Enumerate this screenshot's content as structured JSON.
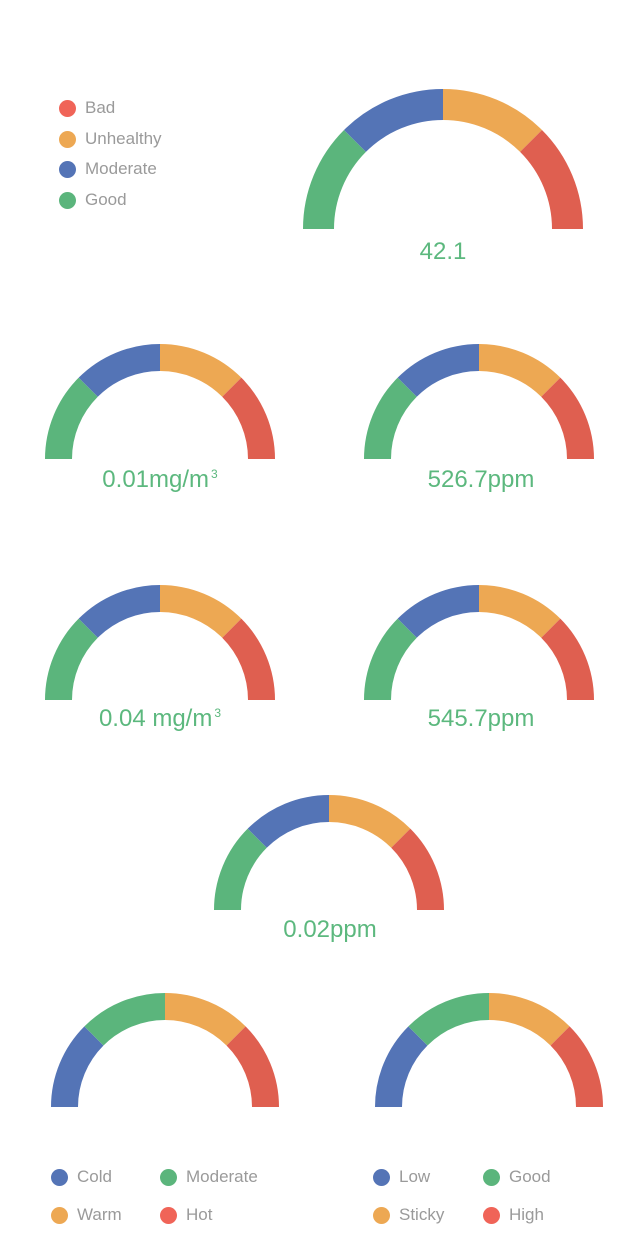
{
  "colors": {
    "good": "#5bb57c",
    "moderate": "#5474b6",
    "unhealthy": "#eda853",
    "bad": "#df5f50",
    "value_text": "#5cb87e",
    "legend_text": "#9a9a9a"
  },
  "legends": {
    "air_quality": [
      {
        "label": "Bad",
        "color": "#f06458"
      },
      {
        "label": "Unhealthy",
        "color": "#eda853"
      },
      {
        "label": "Moderate",
        "color": "#5474b6"
      },
      {
        "label": "Good",
        "color": "#5bb57c"
      }
    ],
    "temperature": [
      {
        "label": "Cold",
        "color": "#5474b6"
      },
      {
        "label": "Moderate",
        "color": "#5bb57c"
      },
      {
        "label": "Warm",
        "color": "#eda853"
      },
      {
        "label": "Hot",
        "color": "#f06458"
      }
    ],
    "humidity": [
      {
        "label": "Low",
        "color": "#5474b6"
      },
      {
        "label": "Good",
        "color": "#5bb57c"
      },
      {
        "label": "Sticky",
        "color": "#eda853"
      },
      {
        "label": "High",
        "color": "#f06458"
      }
    ]
  },
  "chart_data": [
    {
      "type": "gauge",
      "value": "42.1",
      "segments": [
        "Good",
        "Moderate",
        "Unhealthy",
        "Bad"
      ],
      "segment_colors": [
        "#5bb57c",
        "#5474b6",
        "#eda853",
        "#df5f50"
      ]
    },
    {
      "type": "gauge",
      "value": "0.01mg/m",
      "unit_superscript": "3",
      "segments": [
        "Good",
        "Moderate",
        "Unhealthy",
        "Bad"
      ],
      "segment_colors": [
        "#5bb57c",
        "#5474b6",
        "#eda853",
        "#df5f50"
      ]
    },
    {
      "type": "gauge",
      "value": "526.7ppm",
      "segments": [
        "Good",
        "Moderate",
        "Unhealthy",
        "Bad"
      ],
      "segment_colors": [
        "#5bb57c",
        "#5474b6",
        "#eda853",
        "#df5f50"
      ]
    },
    {
      "type": "gauge",
      "value": "0.04 mg/m",
      "unit_superscript": "3",
      "segments": [
        "Good",
        "Moderate",
        "Unhealthy",
        "Bad"
      ],
      "segment_colors": [
        "#5bb57c",
        "#5474b6",
        "#eda853",
        "#df5f50"
      ]
    },
    {
      "type": "gauge",
      "value": "545.7ppm",
      "segments": [
        "Good",
        "Moderate",
        "Unhealthy",
        "Bad"
      ],
      "segment_colors": [
        "#5bb57c",
        "#5474b6",
        "#eda853",
        "#df5f50"
      ]
    },
    {
      "type": "gauge",
      "value": "0.02ppm",
      "segments": [
        "Good",
        "Moderate",
        "Unhealthy",
        "Bad"
      ],
      "segment_colors": [
        "#5bb57c",
        "#5474b6",
        "#eda853",
        "#df5f50"
      ]
    },
    {
      "type": "gauge",
      "value": "",
      "segments": [
        "Cold",
        "Moderate",
        "Warm",
        "Hot"
      ],
      "segment_colors": [
        "#5474b6",
        "#5bb57c",
        "#eda853",
        "#df5f50"
      ]
    },
    {
      "type": "gauge",
      "value": "",
      "segments": [
        "Low",
        "Good",
        "Sticky",
        "High"
      ],
      "segment_colors": [
        "#5474b6",
        "#5bb57c",
        "#eda853",
        "#df5f50"
      ]
    }
  ]
}
